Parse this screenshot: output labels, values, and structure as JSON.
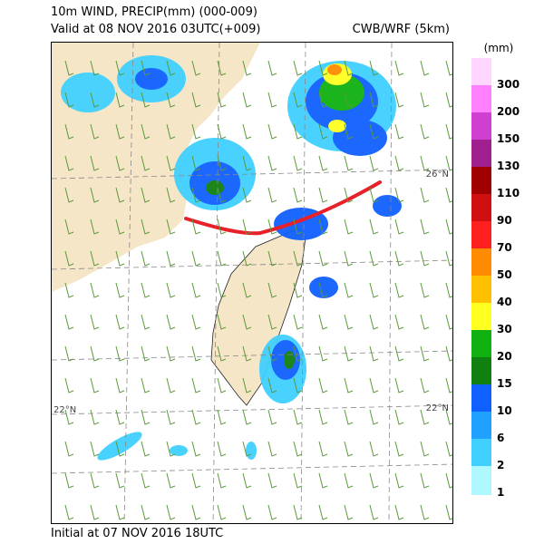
{
  "header": {
    "title": "10m WIND, PRECIP(mm) (000-009)",
    "valid": "Valid at 08 NOV 2016 03UTC(+009)",
    "model": "CWB/WRF (5km)"
  },
  "footer": {
    "initial": "Initial at 07 NOV 2016 18UTC"
  },
  "map": {
    "lat_labels": {
      "north": "26°N",
      "south": "22°N"
    },
    "front_color": "#e8202a",
    "land_color": "#f5e6c8"
  },
  "legend": {
    "unit": "(mm)",
    "items": [
      {
        "label": "300",
        "color": "#ffd6ff"
      },
      {
        "label": "200",
        "color": "#ff80ff"
      },
      {
        "label": "150",
        "color": "#d040d0"
      },
      {
        "label": "130",
        "color": "#a02090"
      },
      {
        "label": "110",
        "color": "#a00000"
      },
      {
        "label": "90",
        "color": "#d01010"
      },
      {
        "label": "70",
        "color": "#ff2020"
      },
      {
        "label": "50",
        "color": "#ff8c00"
      },
      {
        "label": "40",
        "color": "#ffc000"
      },
      {
        "label": "30",
        "color": "#ffff20"
      },
      {
        "label": "20",
        "color": "#10b010"
      },
      {
        "label": "15",
        "color": "#108010"
      },
      {
        "label": "10",
        "color": "#1060ff"
      },
      {
        "label": "6",
        "color": "#20a0ff"
      },
      {
        "label": "2",
        "color": "#40d0ff"
      },
      {
        "label": "1",
        "color": "#b0f8ff"
      }
    ]
  }
}
